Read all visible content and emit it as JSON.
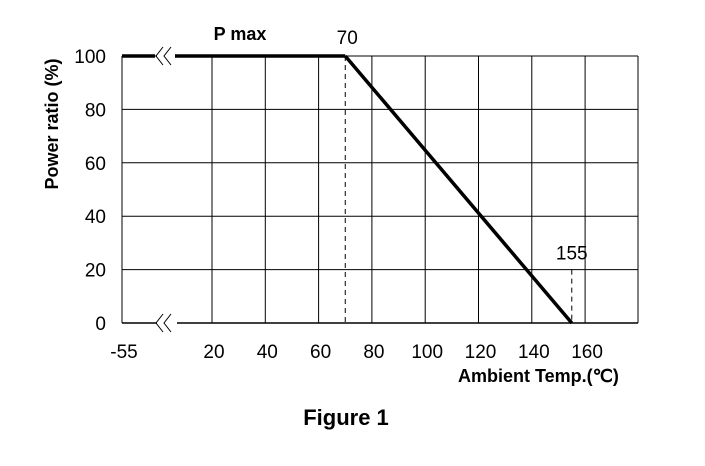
{
  "chart_data": {
    "type": "line",
    "title": "",
    "caption": "Figure 1",
    "xlabel": "Ambient Temp.(℃)",
    "ylabel": "Power ratio (%)",
    "x_ticks": [
      -55,
      20,
      40,
      60,
      80,
      100,
      120,
      140,
      160
    ],
    "y_ticks": [
      0,
      20,
      40,
      60,
      80,
      100
    ],
    "xlim": [
      -55,
      160
    ],
    "ylim": [
      0,
      100
    ],
    "axis_break": true,
    "grid": true,
    "series": [
      {
        "values": [
          {
            "x": -55,
            "y": 100
          },
          {
            "x": 70,
            "y": 100
          },
          {
            "x": 155,
            "y": 0
          }
        ]
      }
    ],
    "annotations": [
      {
        "text": "P max",
        "x": 25,
        "y": 100
      },
      {
        "text": "70",
        "x": 70,
        "y": 100
      },
      {
        "text": "155",
        "x": 155,
        "y": 20
      }
    ],
    "reference_lines": [
      {
        "x": 70,
        "from_y": 0,
        "to_y": 100,
        "style": "dashed"
      },
      {
        "x": 155,
        "from_y": 0,
        "to_y": 20,
        "style": "dashed"
      }
    ]
  }
}
